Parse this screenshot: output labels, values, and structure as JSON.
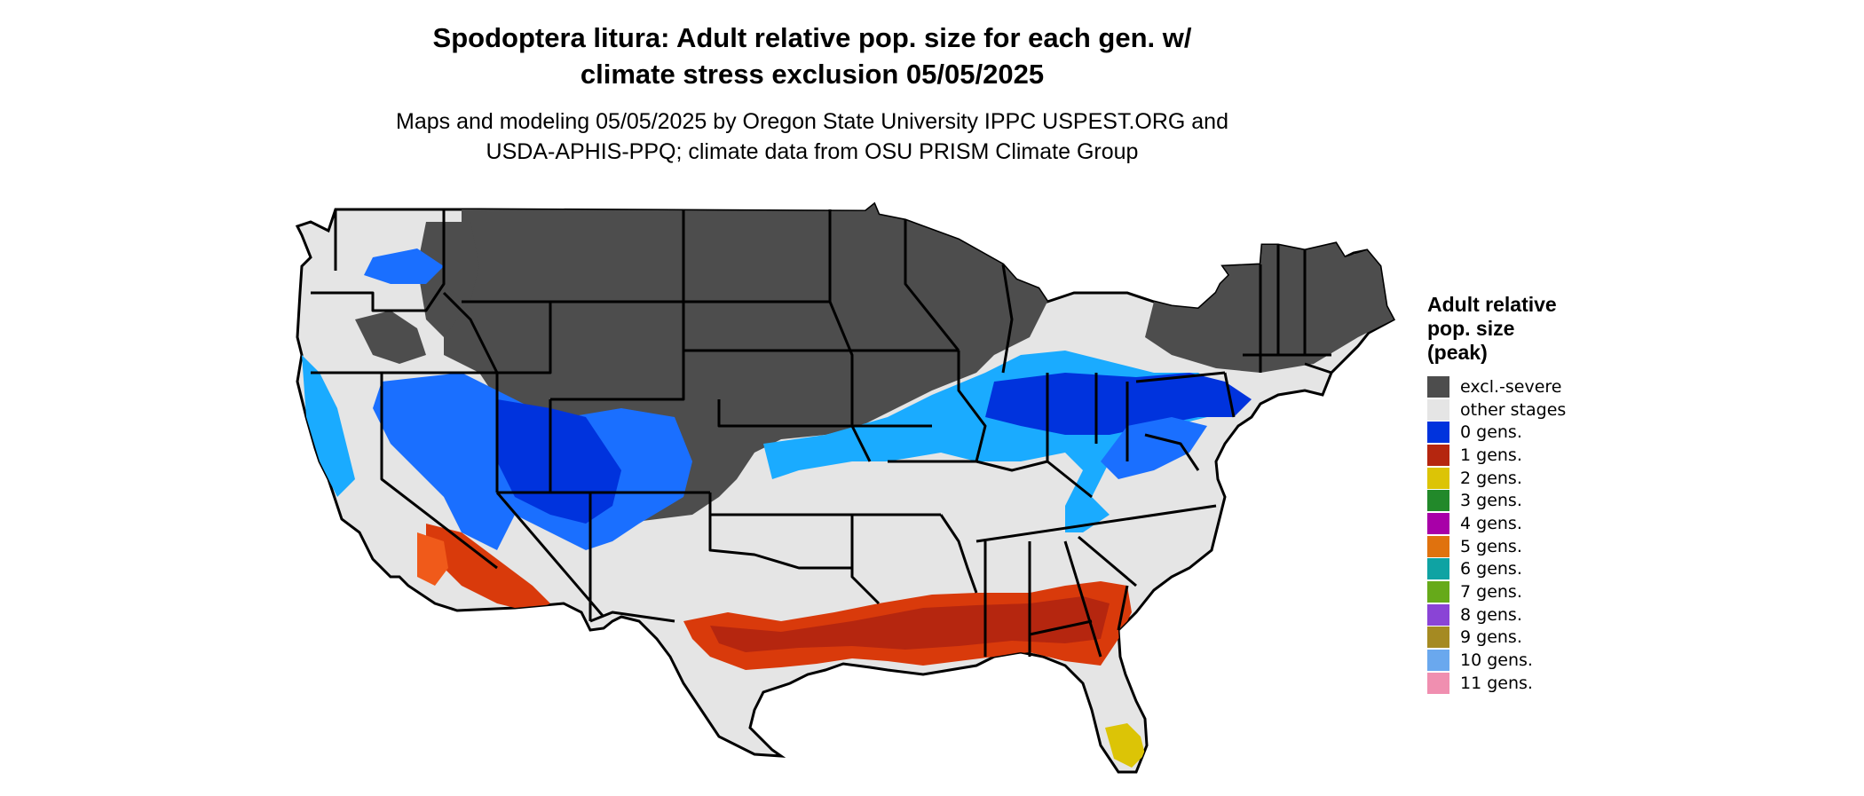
{
  "title": {
    "line1": "Spodoptera litura: Adult relative pop. size for each gen. w/",
    "line2": "climate stress exclusion 05/05/2025"
  },
  "subtitle": {
    "line1": "Maps and modeling 05/05/2025 by Oregon State University IPPC USPEST.ORG and",
    "line2": "USDA-APHIS-PPQ; climate data from OSU PRISM Climate Group"
  },
  "legend": {
    "title_lines": [
      "Adult relative",
      "pop. size",
      "(peak)"
    ],
    "items": [
      {
        "label": "excl.-severe",
        "color": "#4d4d4d"
      },
      {
        "label": "other stages",
        "color": "#e5e5e5"
      },
      {
        "label": "0 gens.",
        "color": "#0033dd"
      },
      {
        "label": "1 gens.",
        "color": "#b5260f"
      },
      {
        "label": "2 gens.",
        "color": "#dcc406"
      },
      {
        "label": "3 gens.",
        "color": "#22892a"
      },
      {
        "label": "4 gens.",
        "color": "#a800a8"
      },
      {
        "label": "5 gens.",
        "color": "#e0720e"
      },
      {
        "label": "6 gens.",
        "color": "#0fa3a3"
      },
      {
        "label": "7 gens.",
        "color": "#66aa1a"
      },
      {
        "label": "8 gens.",
        "color": "#8a44d6"
      },
      {
        "label": "9 gens.",
        "color": "#a58a22"
      },
      {
        "label": "10 gens.",
        "color": "#6aa8ee"
      },
      {
        "label": "11 gens.",
        "color": "#f08fb0"
      }
    ]
  },
  "map": {
    "colors": {
      "background": "#e5e5e5",
      "excluded": "#4d4d4d",
      "gen0_dark": "#0033dd",
      "gen0_mid": "#1a6fff",
      "gen0_light": "#1aabff",
      "gen1_dark": "#b5260f",
      "gen1_mid": "#d93a0b",
      "gen1_light": "#f05a1a",
      "gen2": "#dcc406",
      "border": "#000000"
    }
  }
}
